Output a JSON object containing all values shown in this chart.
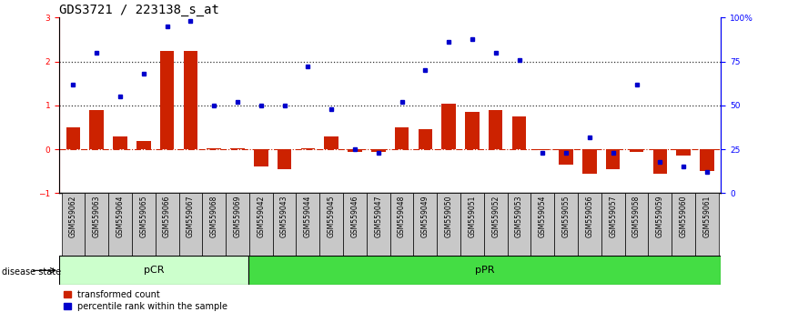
{
  "title": "GDS3721 / 223138_s_at",
  "categories": [
    "GSM559062",
    "GSM559063",
    "GSM559064",
    "GSM559065",
    "GSM559066",
    "GSM559067",
    "GSM559068",
    "GSM559069",
    "GSM559042",
    "GSM559043",
    "GSM559044",
    "GSM559045",
    "GSM559046",
    "GSM559047",
    "GSM559048",
    "GSM559049",
    "GSM559050",
    "GSM559051",
    "GSM559052",
    "GSM559053",
    "GSM559054",
    "GSM559055",
    "GSM559056",
    "GSM559057",
    "GSM559058",
    "GSM559059",
    "GSM559060",
    "GSM559061"
  ],
  "transformed_count": [
    0.5,
    0.9,
    0.3,
    0.2,
    2.25,
    2.25,
    0.02,
    0.02,
    -0.4,
    -0.45,
    0.02,
    0.3,
    -0.05,
    -0.05,
    0.5,
    0.45,
    1.05,
    0.85,
    0.9,
    0.75,
    -0.02,
    -0.35,
    -0.55,
    -0.45,
    -0.05,
    -0.55,
    -0.15,
    -0.5
  ],
  "percentile_rank": [
    62,
    80,
    55,
    68,
    95,
    98,
    50,
    52,
    50,
    50,
    72,
    48,
    25,
    23,
    52,
    70,
    86,
    88,
    80,
    76,
    23,
    23,
    32,
    23,
    62,
    18,
    15,
    12
  ],
  "pCR_count": 8,
  "pPR_count": 20,
  "ylim": [
    -1,
    3
  ],
  "yticks_left": [
    -1,
    0,
    1,
    2,
    3
  ],
  "yticks_right_vals": [
    0,
    25,
    50,
    75,
    100
  ],
  "bar_color": "#cc2200",
  "dot_color": "#0000cc",
  "pCR_facecolor": "#ccffcc",
  "pPR_facecolor": "#44dd44",
  "bg_color": "#ffffff",
  "dotted_line_color": "#333333",
  "zero_line_color": "#cc2200",
  "title_fontsize": 10,
  "bar_fontsize": 6.5,
  "label_fontsize": 7.5,
  "legend_fontsize": 7,
  "disease_state_fontsize": 7
}
